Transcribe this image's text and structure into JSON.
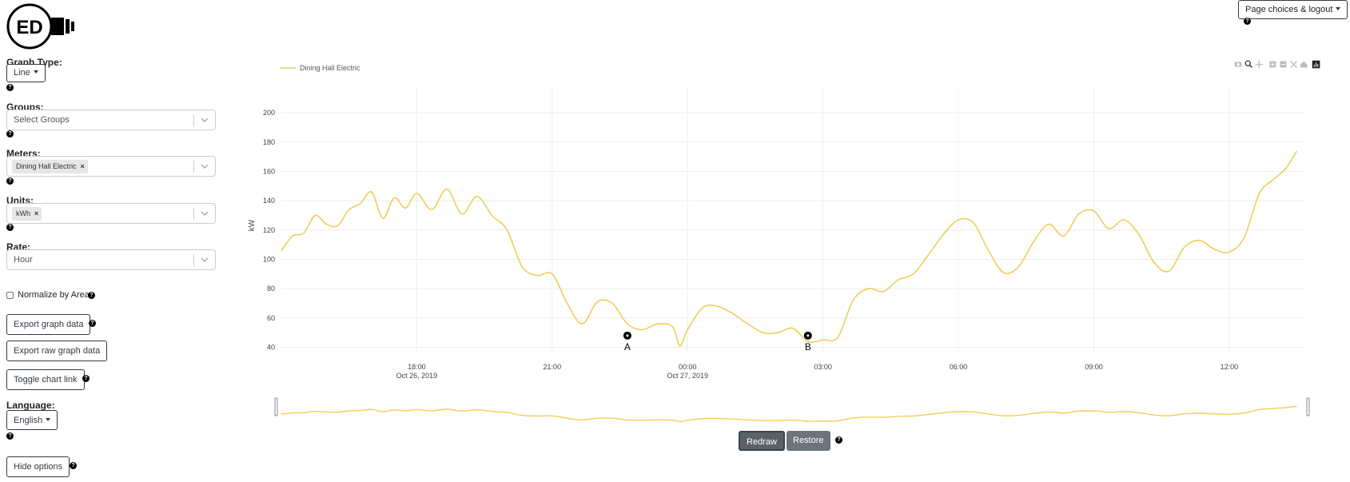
{
  "logo": {
    "text": "ED"
  },
  "header": {
    "page_choices_label": "Page choices & logout"
  },
  "sidebar": {
    "graph_type_label": "Graph Type:",
    "graph_type_value": "Line",
    "groups_label": "Groups:",
    "groups_placeholder": "Select Groups",
    "meters_label": "Meters:",
    "meters_selected": [
      "Dining Hall Electric"
    ],
    "units_label": "Units:",
    "units_selected": [
      "kWh"
    ],
    "rate_label": "Rate:",
    "rate_value": "Hour",
    "normalize_label": "Normalize by Area",
    "normalize_checked": false,
    "export_graph_label": "Export graph data",
    "export_raw_label": "Export raw graph data",
    "toggle_chart_link_label": "Toggle chart link",
    "language_label": "Language:",
    "language_value": "English",
    "hide_options_label": "Hide options"
  },
  "modebar": {
    "icons": [
      "camera-icon",
      "zoom-icon",
      "pan-icon",
      "zoom-in-icon",
      "zoom-out-icon",
      "autoscale-icon",
      "reset-axes-icon",
      "plotly-logo-icon"
    ]
  },
  "buttons": {
    "redraw": "Redraw",
    "restore": "Restore"
  },
  "colors": {
    "series": "#f2cc5a",
    "accent_dark": "#343a40",
    "button_gray": "#6c757d"
  },
  "chart_data": {
    "type": "line",
    "title": "",
    "xlabel": "",
    "ylabel": "kW",
    "ylim": [
      37,
      217
    ],
    "yticks": [
      40,
      60,
      80,
      100,
      120,
      140,
      160,
      180,
      200
    ],
    "xlim": [
      "2019-10-26 15:00",
      "2019-10-27 13:40"
    ],
    "xticks": [
      {
        "t": "2019-10-26 18:00",
        "label": "18:00",
        "sublabel": "Oct 26, 2019"
      },
      {
        "t": "2019-10-26 21:00",
        "label": "21:00",
        "sublabel": ""
      },
      {
        "t": "2019-10-27 00:00",
        "label": "00:00",
        "sublabel": "Oct 27, 2019"
      },
      {
        "t": "2019-10-27 03:00",
        "label": "03:00",
        "sublabel": ""
      },
      {
        "t": "2019-10-27 06:00",
        "label": "06:00",
        "sublabel": ""
      },
      {
        "t": "2019-10-27 09:00",
        "label": "09:00",
        "sublabel": ""
      },
      {
        "t": "2019-10-27 12:00",
        "label": "12:00",
        "sublabel": ""
      }
    ],
    "grid": true,
    "legend": "top-left",
    "series": [
      {
        "name": "Dining Hall Electric",
        "color": "#f2cc5a",
        "x": [
          "2019-10-26 15:00",
          "2019-10-26 15:15",
          "2019-10-26 15:30",
          "2019-10-26 15:45",
          "2019-10-26 16:00",
          "2019-10-26 16:15",
          "2019-10-26 16:30",
          "2019-10-26 16:45",
          "2019-10-26 17:00",
          "2019-10-26 17:15",
          "2019-10-26 17:30",
          "2019-10-26 17:45",
          "2019-10-26 18:00",
          "2019-10-26 18:20",
          "2019-10-26 18:40",
          "2019-10-26 19:00",
          "2019-10-26 19:20",
          "2019-10-26 19:40",
          "2019-10-26 20:00",
          "2019-10-26 20:20",
          "2019-10-26 20:40",
          "2019-10-26 21:00",
          "2019-10-26 21:20",
          "2019-10-26 21:40",
          "2019-10-26 22:00",
          "2019-10-26 22:20",
          "2019-10-26 22:40",
          "2019-10-26 23:00",
          "2019-10-26 23:20",
          "2019-10-26 23:40",
          "2019-10-26 23:50",
          "2019-10-27 00:00",
          "2019-10-27 00:20",
          "2019-10-27 00:40",
          "2019-10-27 01:00",
          "2019-10-27 01:20",
          "2019-10-27 01:40",
          "2019-10-27 02:00",
          "2019-10-27 02:20",
          "2019-10-27 02:40",
          "2019-10-27 03:00",
          "2019-10-27 03:20",
          "2019-10-27 03:40",
          "2019-10-27 04:00",
          "2019-10-27 04:20",
          "2019-10-27 04:40",
          "2019-10-27 05:00",
          "2019-10-27 05:20",
          "2019-10-27 05:40",
          "2019-10-27 06:00",
          "2019-10-27 06:20",
          "2019-10-27 06:40",
          "2019-10-27 07:00",
          "2019-10-27 07:20",
          "2019-10-27 07:40",
          "2019-10-27 08:00",
          "2019-10-27 08:20",
          "2019-10-27 08:40",
          "2019-10-27 09:00",
          "2019-10-27 09:20",
          "2019-10-27 09:40",
          "2019-10-27 10:00",
          "2019-10-27 10:20",
          "2019-10-27 10:40",
          "2019-10-27 11:00",
          "2019-10-27 11:20",
          "2019-10-27 11:40",
          "2019-10-27 12:00",
          "2019-10-27 12:20",
          "2019-10-27 12:40",
          "2019-10-27 13:00",
          "2019-10-27 13:15",
          "2019-10-27 13:30"
        ],
        "y": [
          106,
          116,
          118,
          130,
          124,
          123,
          134,
          138,
          146,
          128,
          142,
          135,
          145,
          134,
          148,
          131,
          143,
          130,
          120,
          95,
          89,
          90,
          70,
          56,
          71,
          70,
          56,
          52,
          56,
          54,
          41,
          52,
          67,
          68,
          63,
          56,
          50,
          50,
          53,
          44,
          45,
          47,
          72,
          80,
          78,
          86,
          90,
          103,
          117,
          127,
          125,
          106,
          91,
          95,
          112,
          124,
          116,
          131,
          133,
          121,
          127,
          117,
          98,
          92,
          108,
          113,
          107,
          105,
          115,
          145,
          155,
          162,
          174
        ]
      }
    ],
    "annotations": [
      {
        "t": "2019-10-26 22:40",
        "y": 48,
        "label": "A"
      },
      {
        "t": "2019-10-27 02:40",
        "y": 48,
        "label": "B"
      }
    ],
    "range_slider": true
  }
}
